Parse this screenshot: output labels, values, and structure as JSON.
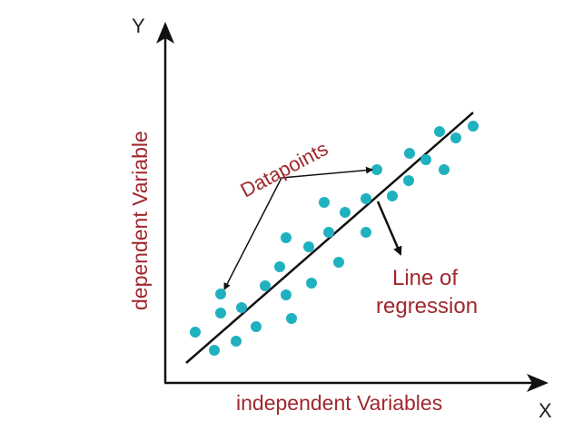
{
  "diagram": {
    "axis_x_letter": "X",
    "axis_y_letter": "Y",
    "x_axis_label": "independent Variables",
    "y_axis_label": "dependent Variable",
    "datapoints_label": "Datapoints",
    "regression_label_line1": "Line of",
    "regression_label_line2": "regression"
  },
  "colors": {
    "point": "#1fb1c0",
    "text_accent": "#a0282d",
    "line": "#111111"
  }
}
